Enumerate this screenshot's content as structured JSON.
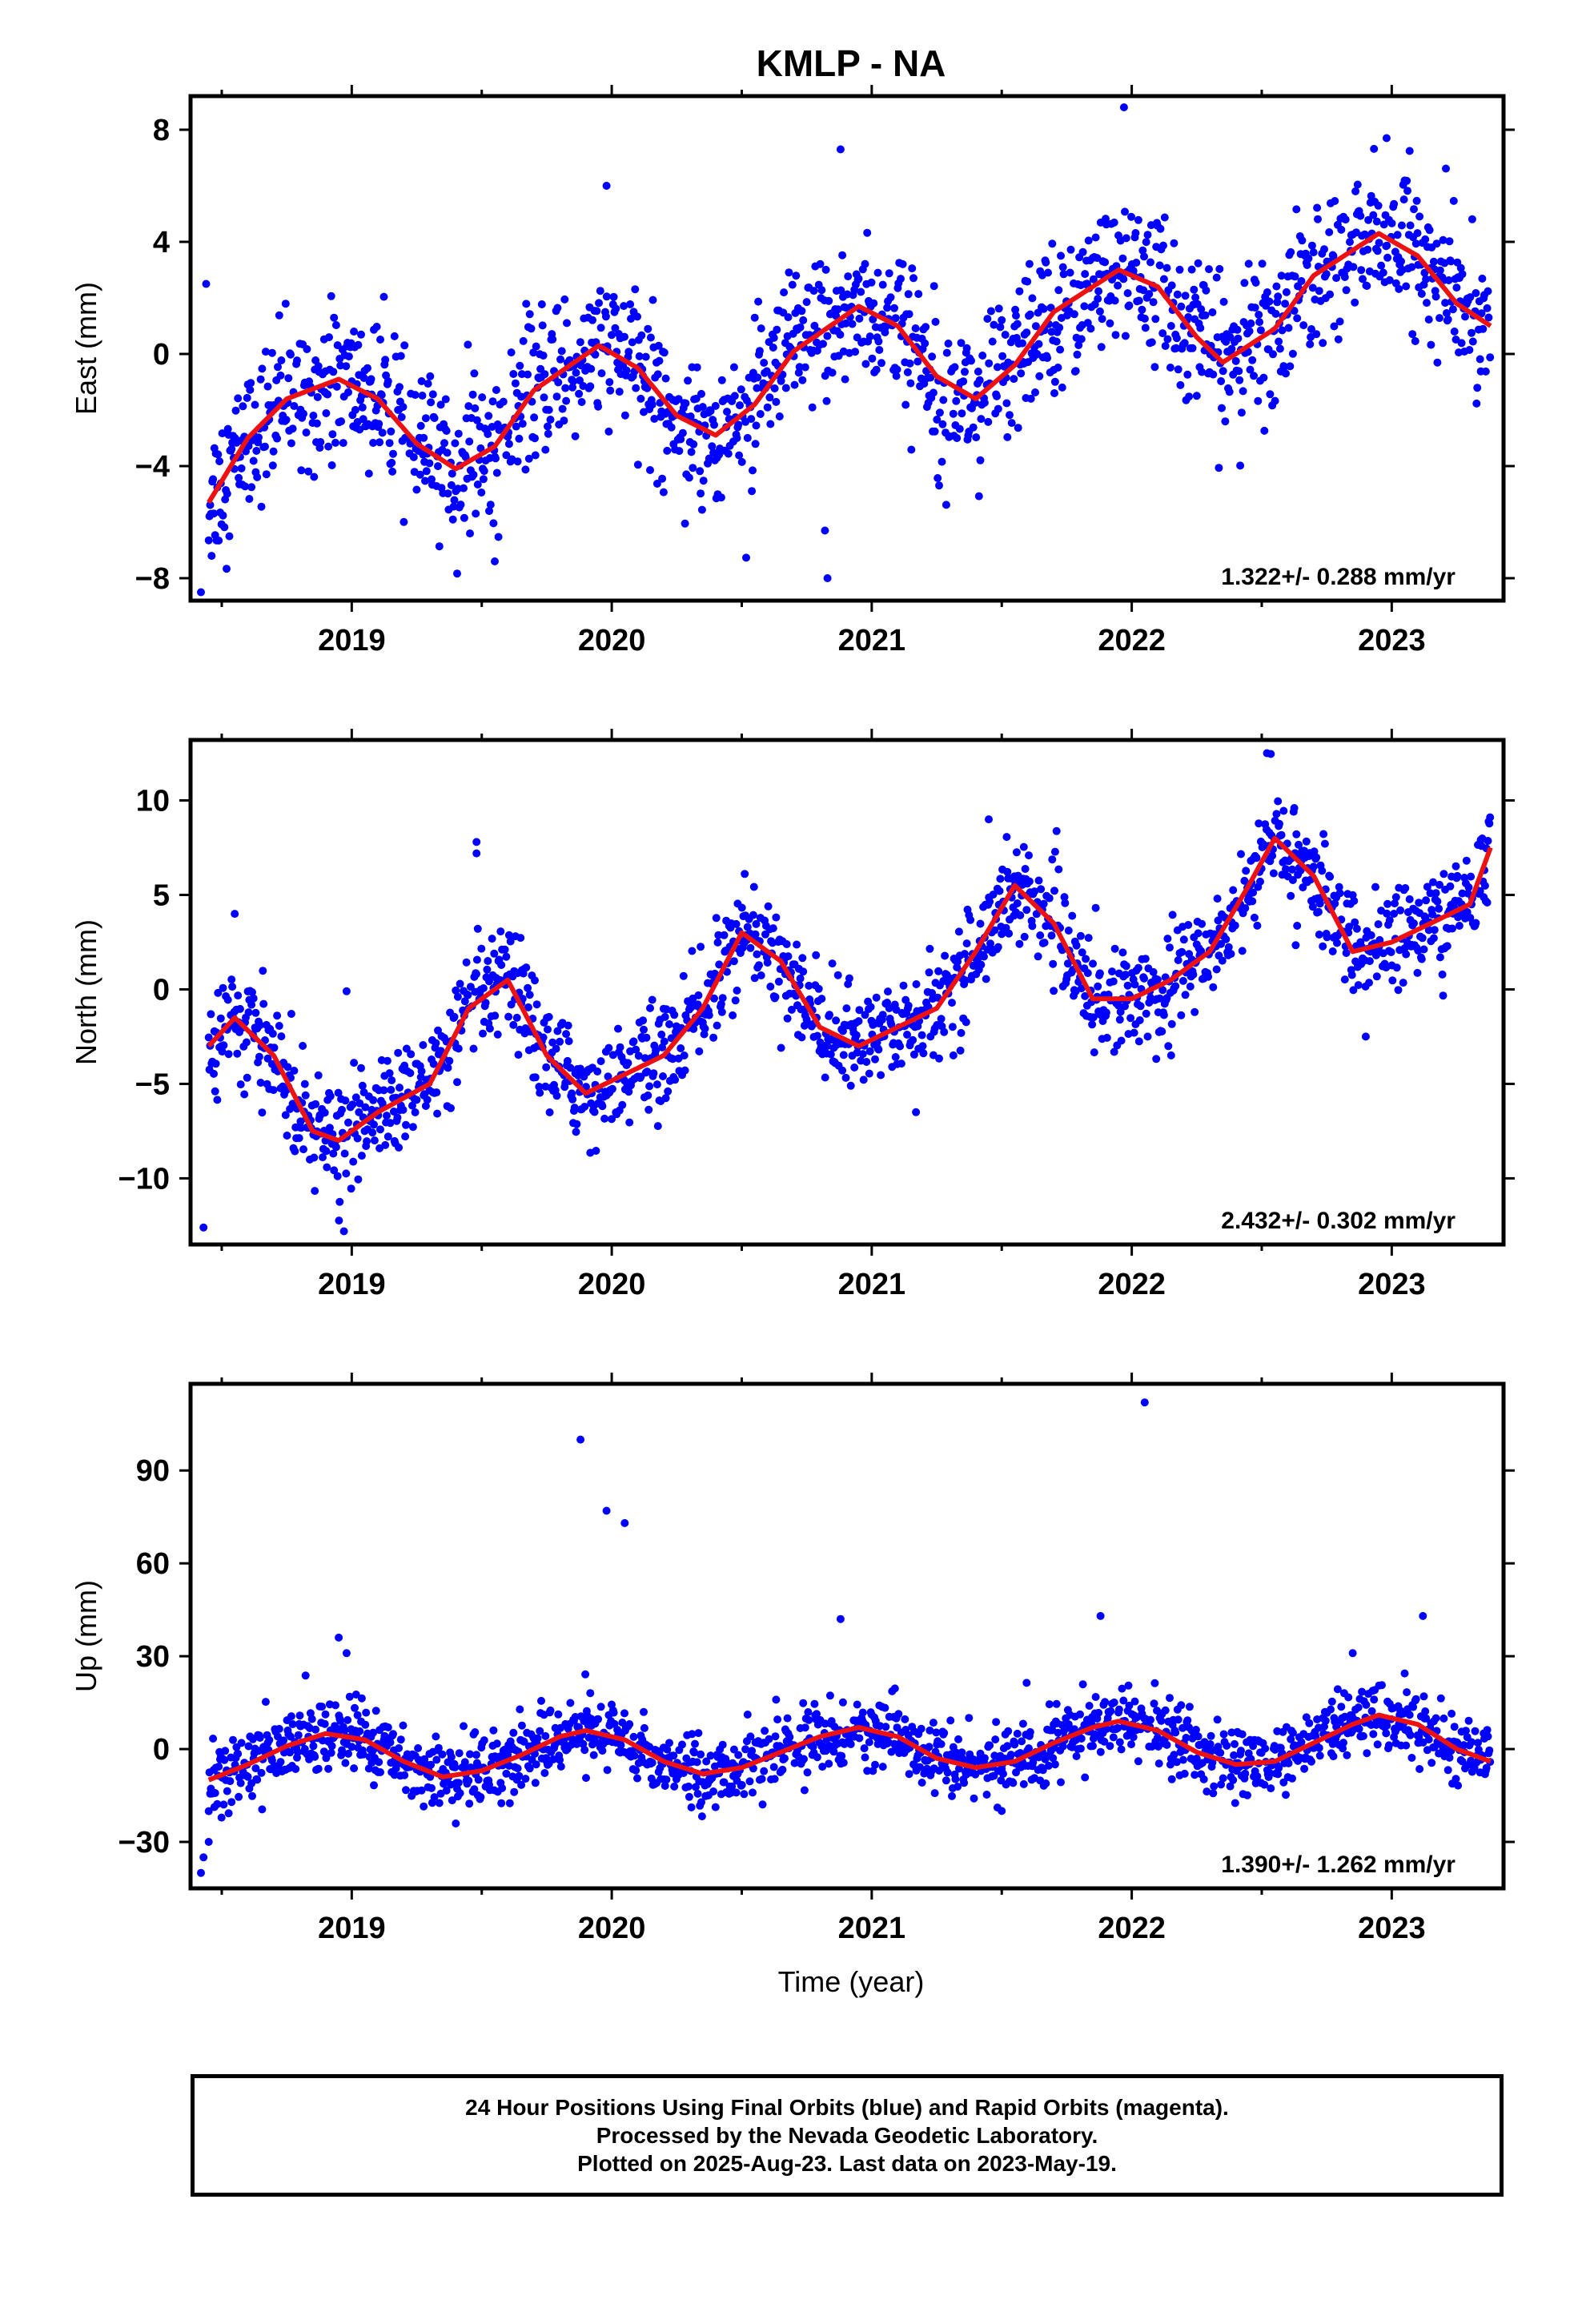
{
  "title": "KMLP - NA",
  "x_axis_label": "Time (year)",
  "colors": {
    "points": "#0000ff",
    "fit": "#ee1111",
    "frame": "#000000"
  },
  "chart_data": [
    {
      "type": "scatter",
      "name": "east",
      "ylabel": "East (mm)",
      "xlim": [
        2018.38,
        2023.43
      ],
      "ylim": [
        -8.8,
        9.2
      ],
      "x_ticks": [
        2019,
        2020,
        2021,
        2022,
        2023
      ],
      "y_ticks": [
        -8,
        -4,
        0,
        4,
        8
      ],
      "annotation": "1.322+/- 0.288 mm/yr",
      "rate": 1.322,
      "fit": {
        "x": [
          2018.45,
          2018.6,
          2018.75,
          2018.95,
          2019.1,
          2019.25,
          2019.4,
          2019.55,
          2019.7,
          2019.95,
          2020.1,
          2020.25,
          2020.4,
          2020.55,
          2020.7,
          2020.95,
          2021.1,
          2021.25,
          2021.4,
          2021.55,
          2021.7,
          2021.95,
          2022.1,
          2022.25,
          2022.35,
          2022.55,
          2022.7,
          2022.95,
          2023.1,
          2023.25,
          2023.38
        ],
        "y": [
          -5.3,
          -3.0,
          -1.6,
          -0.9,
          -1.6,
          -3.2,
          -4.1,
          -3.3,
          -1.3,
          0.3,
          -0.5,
          -2.2,
          -2.9,
          -1.8,
          0.1,
          1.7,
          1.0,
          -0.8,
          -1.6,
          -0.4,
          1.5,
          3.0,
          2.4,
          0.6,
          -0.3,
          0.9,
          2.8,
          4.3,
          3.5,
          1.8,
          1.0
        ]
      },
      "points": {
        "noise": 1.3,
        "outliers": [
          [
            2018.42,
            -8.5
          ],
          [
            2018.44,
            2.5
          ],
          [
            2019.98,
            6.0
          ],
          [
            2020.82,
            -6.3
          ],
          [
            2020.83,
            -8.0
          ],
          [
            2020.88,
            7.3
          ],
          [
            2021.97,
            8.8
          ],
          [
            2022.98,
            7.7
          ],
          [
            2019.55,
            -7.4
          ]
        ]
      }
    },
    {
      "type": "scatter",
      "name": "north",
      "ylabel": "North (mm)",
      "xlim": [
        2018.38,
        2023.43
      ],
      "ylim": [
        -13.5,
        13.2
      ],
      "x_ticks": [
        2019,
        2020,
        2021,
        2022,
        2023
      ],
      "y_ticks": [
        -10,
        -5,
        0,
        5,
        10
      ],
      "annotation": "2.432+/- 0.302 mm/yr",
      "rate": 2.432,
      "fit": {
        "x": [
          2018.45,
          2018.55,
          2018.7,
          2018.85,
          2018.95,
          2019.1,
          2019.3,
          2019.45,
          2019.6,
          2019.75,
          2019.9,
          2020.05,
          2020.2,
          2020.35,
          2020.5,
          2020.65,
          2020.8,
          2020.95,
          2021.1,
          2021.25,
          2021.4,
          2021.55,
          2021.7,
          2021.85,
          2022.0,
          2022.15,
          2022.3,
          2022.45,
          2022.55,
          2022.7,
          2022.85,
          2023.0,
          2023.15,
          2023.3,
          2023.38
        ],
        "y": [
          -3.0,
          -1.5,
          -3.5,
          -7.5,
          -8.0,
          -6.5,
          -5.0,
          -1.0,
          0.5,
          -3.5,
          -5.5,
          -4.5,
          -3.5,
          -1.0,
          3.0,
          1.5,
          -2.0,
          -3.0,
          -2.0,
          -1.0,
          2.0,
          5.5,
          3.5,
          -0.5,
          -0.5,
          0.5,
          2.0,
          5.5,
          8.0,
          6.0,
          2.0,
          2.5,
          3.5,
          4.5,
          7.5
        ]
      },
      "points": {
        "noise": 1.35,
        "outliers": [
          [
            2018.43,
            -12.6
          ],
          [
            2018.55,
            4.0
          ],
          [
            2018.98,
            -0.1
          ],
          [
            2018.97,
            -12.8
          ],
          [
            2019.48,
            7.8
          ],
          [
            2019.48,
            7.2
          ],
          [
            2021.45,
            9.0
          ],
          [
            2022.52,
            12.5
          ],
          [
            2022.9,
            -2.5
          ],
          [
            2021.17,
            -6.5
          ]
        ]
      }
    },
    {
      "type": "scatter",
      "name": "up",
      "ylabel": "Up (mm)",
      "xlim": [
        2018.38,
        2023.43
      ],
      "ylim": [
        -45,
        118
      ],
      "x_ticks": [
        2019,
        2020,
        2021,
        2022,
        2023
      ],
      "y_ticks": [
        -30,
        0,
        30,
        60,
        90
      ],
      "annotation": "1.390+/- 1.262 mm/yr",
      "rate": 1.39,
      "fit": {
        "x": [
          2018.45,
          2018.6,
          2018.75,
          2018.9,
          2019.05,
          2019.2,
          2019.35,
          2019.5,
          2019.65,
          2019.8,
          2019.9,
          2020.05,
          2020.2,
          2020.35,
          2020.5,
          2020.65,
          2020.8,
          2020.95,
          2021.1,
          2021.25,
          2021.4,
          2021.55,
          2021.7,
          2021.85,
          2021.95,
          2022.1,
          2022.25,
          2022.4,
          2022.55,
          2022.7,
          2022.85,
          2022.95,
          2023.1,
          2023.25,
          2023.38
        ],
        "y": [
          -10,
          -5,
          1,
          5,
          3,
          -4,
          -9,
          -7,
          -2,
          4,
          6,
          3,
          -4,
          -8,
          -6,
          -1,
          4,
          7,
          4,
          -3,
          -6,
          -4,
          2,
          7,
          9,
          6,
          -1,
          -5,
          -4,
          2,
          8,
          11,
          8,
          0,
          -4
        ]
      },
      "points": {
        "noise": 5.5,
        "outliers": [
          [
            2019.88,
            100
          ],
          [
            2019.98,
            77
          ],
          [
            2020.05,
            73
          ],
          [
            2022.05,
            112
          ],
          [
            2018.95,
            36
          ],
          [
            2018.98,
            31
          ],
          [
            2020.88,
            42
          ],
          [
            2021.88,
            43
          ],
          [
            2023.12,
            43
          ],
          [
            2022.85,
            31
          ],
          [
            2018.42,
            -40
          ],
          [
            2018.43,
            -35
          ],
          [
            2018.45,
            -30
          ],
          [
            2021.5,
            -20
          ]
        ]
      }
    }
  ],
  "caption": {
    "line1": "24 Hour Positions Using Final Orbits (blue) and Rapid Orbits (magenta).",
    "line2": "Processed by the Nevada Geodetic Laboratory.",
    "line3": "Plotted on 2025-Aug-23. Last data on 2023-May-19."
  }
}
